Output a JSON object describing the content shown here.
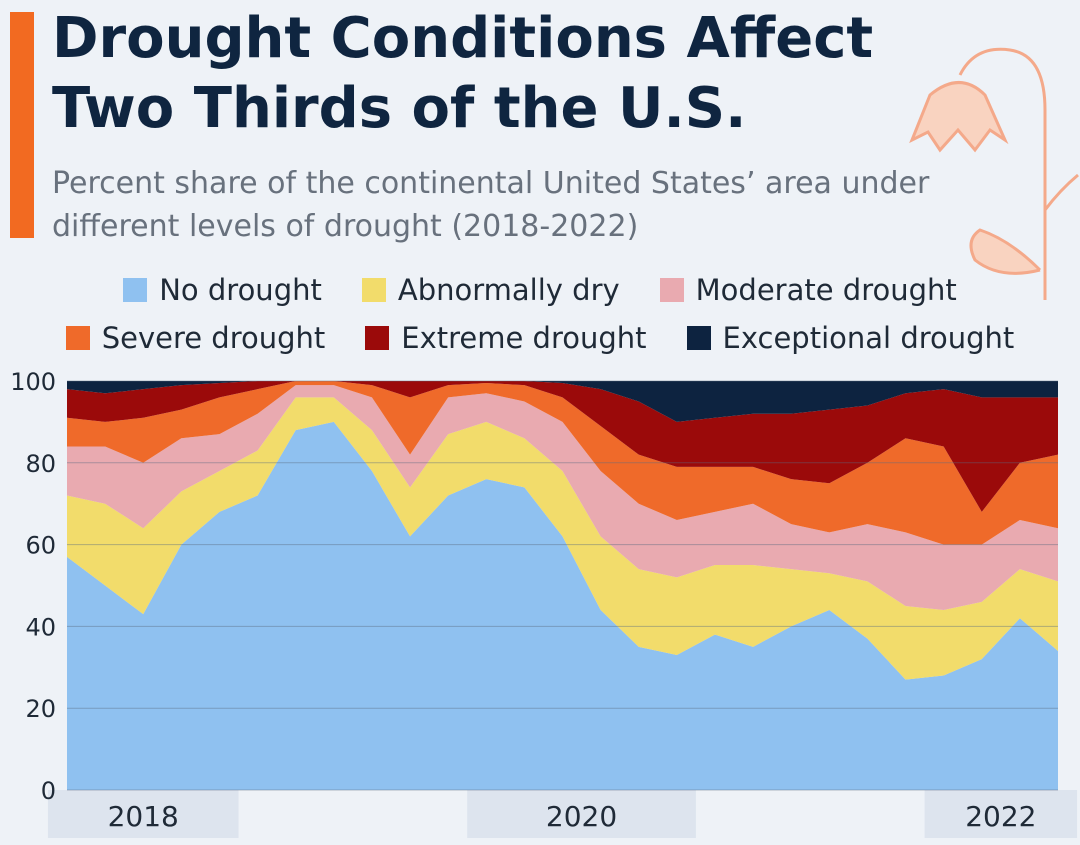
{
  "chart_data": {
    "type": "stacked-area",
    "title": "Drought Conditions Affect Two Thirds of the U.S.",
    "subtitle": "Percent share of the continental United States’ area under different levels of drought (2018-2022)",
    "categories": [
      "2018",
      "2018",
      "2018",
      "2018",
      "2018",
      null,
      null,
      null,
      null,
      null,
      null,
      "2020",
      "2020",
      "2020",
      "2020",
      "2020",
      "2020",
      null,
      null,
      null,
      null,
      null,
      null,
      "2022",
      "2022",
      "2022",
      "2022"
    ],
    "series": [
      {
        "name": "No drought",
        "color": "#8fc1f0",
        "values": [
          57,
          50,
          43,
          60,
          68,
          72,
          88,
          90,
          78,
          62,
          72,
          76,
          74,
          62,
          44,
          35,
          33,
          38,
          35,
          40,
          44,
          37,
          27,
          28,
          32,
          42,
          34
        ]
      },
      {
        "name": "Abnormally dry",
        "color": "#f2dc6b",
        "values": [
          15,
          20,
          21,
          13,
          10,
          11,
          8,
          6,
          10,
          12,
          15,
          14,
          12,
          16,
          18,
          19,
          19,
          17,
          20,
          14,
          9,
          14,
          18,
          16,
          14,
          12,
          17
        ]
      },
      {
        "name": "Moderate drought",
        "color": "#e9aab0",
        "values": [
          12,
          14,
          16,
          13,
          9,
          9,
          3,
          3,
          8,
          8,
          9,
          7,
          9,
          12,
          16,
          16,
          14,
          13,
          15,
          11,
          10,
          14,
          18,
          16,
          14,
          12,
          13
        ]
      },
      {
        "name": "Severe drought",
        "color": "#ef6a2a",
        "values": [
          7,
          6,
          11,
          7,
          9,
          6,
          1,
          1,
          3,
          14,
          3,
          2.5,
          4,
          6,
          11,
          12,
          13,
          11,
          9,
          11,
          12,
          15,
          23,
          24,
          8,
          14,
          18
        ]
      },
      {
        "name": "Extreme drought",
        "color": "#9b0a0a",
        "values": [
          7,
          7,
          7,
          6,
          3.5,
          2,
          0,
          0,
          1,
          4,
          1,
          0.5,
          1,
          3.5,
          9,
          13,
          11,
          12,
          13,
          16,
          18,
          14,
          11,
          14,
          28,
          16,
          14
        ]
      },
      {
        "name": "Exceptional drought",
        "color": "#0d2340",
        "values": [
          2,
          3,
          2,
          1,
          0.5,
          0,
          0,
          0,
          0,
          0,
          0,
          0,
          0,
          0.5,
          2,
          5,
          10,
          9,
          8,
          8,
          7,
          6,
          3,
          2,
          4,
          4,
          4
        ]
      }
    ],
    "ylim": [
      0,
      100
    ],
    "yticks": [
      0,
      20,
      40,
      60,
      80,
      100
    ],
    "grid": true
  }
}
